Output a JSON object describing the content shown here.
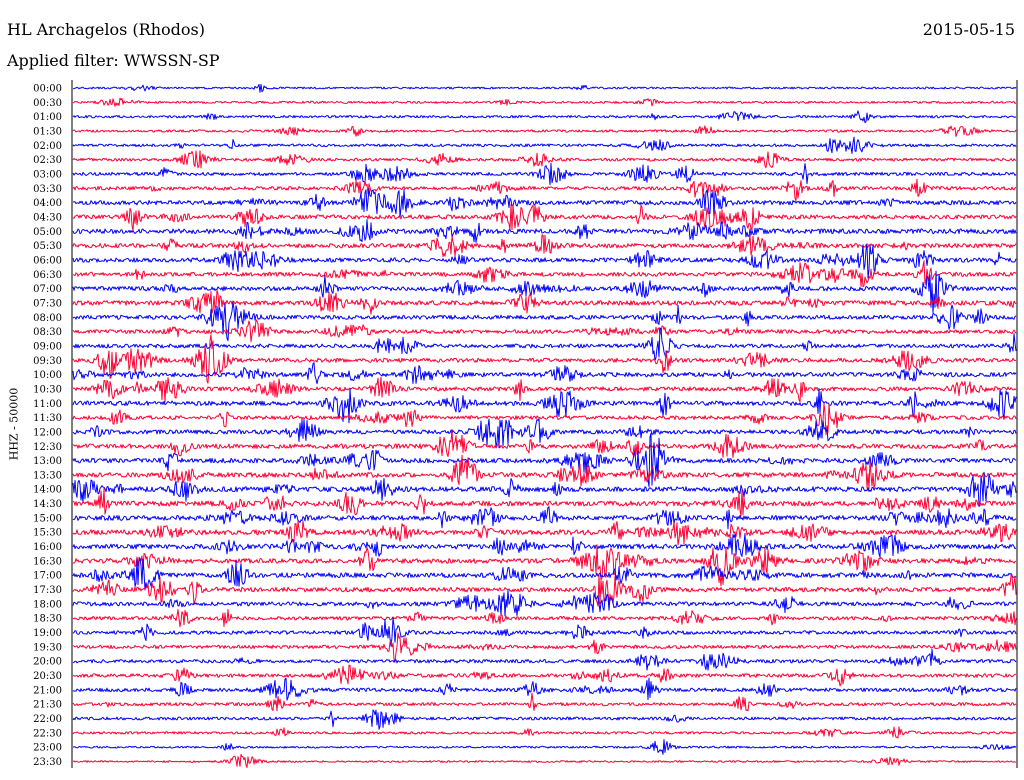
{
  "header": {
    "title": "HL Archagelos (Rhodos)",
    "date": "2015-05-15",
    "filter": "Applied filter: WWSSN-SP"
  },
  "chart_data": {
    "type": "line",
    "chart_kind": "helicorder",
    "ylabel": "HHZ - 50000",
    "colors": [
      "#0000ff",
      "#ff0033"
    ],
    "traces_per_hour": 2,
    "minutes_per_trace": 30,
    "rows": [
      {
        "label": "00:00",
        "activity": 0.15
      },
      {
        "label": "00:30",
        "activity": 0.2
      },
      {
        "label": "01:00",
        "activity": 0.25
      },
      {
        "label": "01:30",
        "activity": 0.25
      },
      {
        "label": "02:00",
        "activity": 0.3
      },
      {
        "label": "02:30",
        "activity": 0.35
      },
      {
        "label": "03:00",
        "activity": 0.45
      },
      {
        "label": "03:30",
        "activity": 0.5
      },
      {
        "label": "04:00",
        "activity": 0.65
      },
      {
        "label": "04:30",
        "activity": 0.6
      },
      {
        "label": "05:00",
        "activity": 0.75
      },
      {
        "label": "05:30",
        "activity": 0.65
      },
      {
        "label": "06:00",
        "activity": 0.65
      },
      {
        "label": "06:30",
        "activity": 0.6
      },
      {
        "label": "07:00",
        "activity": 0.65
      },
      {
        "label": "07:30",
        "activity": 0.7
      },
      {
        "label": "08:00",
        "activity": 0.6
      },
      {
        "label": "08:30",
        "activity": 0.55
      },
      {
        "label": "09:00",
        "activity": 0.55
      },
      {
        "label": "09:30",
        "activity": 0.6
      },
      {
        "label": "10:00",
        "activity": 0.65
      },
      {
        "label": "10:30",
        "activity": 0.6
      },
      {
        "label": "11:00",
        "activity": 0.7
      },
      {
        "label": "11:30",
        "activity": 0.55
      },
      {
        "label": "12:00",
        "activity": 0.6
      },
      {
        "label": "12:30",
        "activity": 0.7
      },
      {
        "label": "13:00",
        "activity": 0.7
      },
      {
        "label": "13:30",
        "activity": 0.75
      },
      {
        "label": "14:00",
        "activity": 0.8
      },
      {
        "label": "14:30",
        "activity": 0.8
      },
      {
        "label": "15:00",
        "activity": 0.75
      },
      {
        "label": "15:30",
        "activity": 0.8
      },
      {
        "label": "16:00",
        "activity": 0.75
      },
      {
        "label": "16:30",
        "activity": 0.75
      },
      {
        "label": "17:00",
        "activity": 0.75
      },
      {
        "label": "17:30",
        "activity": 0.7
      },
      {
        "label": "18:00",
        "activity": 0.6
      },
      {
        "label": "18:30",
        "activity": 0.5
      },
      {
        "label": "19:00",
        "activity": 0.5
      },
      {
        "label": "19:30",
        "activity": 0.45
      },
      {
        "label": "20:00",
        "activity": 0.45
      },
      {
        "label": "20:30",
        "activity": 0.5
      },
      {
        "label": "21:00",
        "activity": 0.5
      },
      {
        "label": "21:30",
        "activity": 0.4
      },
      {
        "label": "22:00",
        "activity": 0.35
      },
      {
        "label": "22:30",
        "activity": 0.25
      },
      {
        "label": "23:00",
        "activity": 0.15
      },
      {
        "label": "23:30",
        "activity": 0.12
      }
    ]
  }
}
